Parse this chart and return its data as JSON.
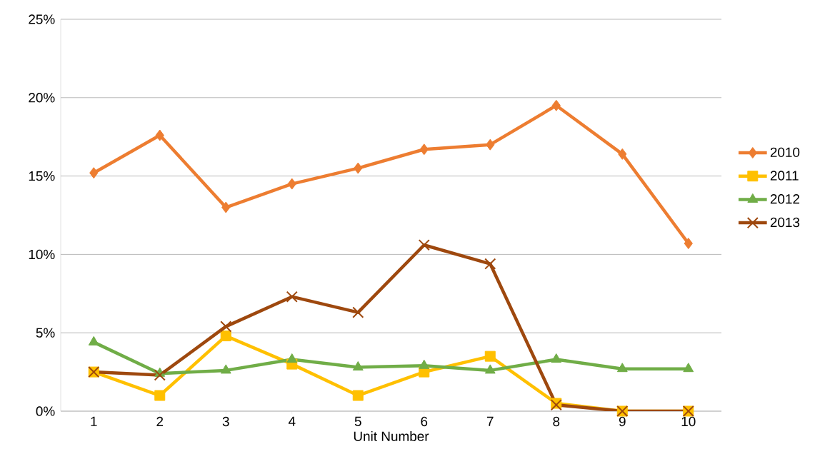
{
  "chart_data": {
    "type": "line",
    "xlabel": "Unit Number",
    "categories": [
      "1",
      "2",
      "3",
      "4",
      "5",
      "6",
      "7",
      "8",
      "9",
      "10"
    ],
    "series": [
      {
        "name": "2010",
        "color": "#ed7d31",
        "marker": "diamond",
        "values": [
          15.2,
          17.6,
          13.0,
          14.5,
          15.5,
          16.7,
          17.0,
          19.5,
          16.4,
          10.7
        ]
      },
      {
        "name": "2011",
        "color": "#ffc000",
        "marker": "square",
        "values": [
          2.5,
          1.0,
          4.8,
          3.0,
          1.0,
          2.5,
          3.5,
          0.5,
          0,
          0
        ]
      },
      {
        "name": "2012",
        "color": "#70ad47",
        "marker": "triangle",
        "values": [
          4.4,
          2.4,
          2.6,
          3.3,
          2.8,
          2.9,
          2.6,
          3.3,
          2.7,
          2.7
        ]
      },
      {
        "name": "2013",
        "color": "#9e480e",
        "marker": "cross",
        "values": [
          2.5,
          2.3,
          5.4,
          7.3,
          6.3,
          10.6,
          9.4,
          0.4,
          0,
          0
        ]
      }
    ],
    "ylim": [
      0,
      25
    ],
    "yticks": [
      {
        "value": 0,
        "label": "0%"
      },
      {
        "value": 5,
        "label": "5%"
      },
      {
        "value": 10,
        "label": "10%"
      },
      {
        "value": 15,
        "label": "15%"
      },
      {
        "value": 20,
        "label": "20%"
      },
      {
        "value": 25,
        "label": "25%"
      }
    ],
    "grid": "y",
    "legend": "right"
  }
}
